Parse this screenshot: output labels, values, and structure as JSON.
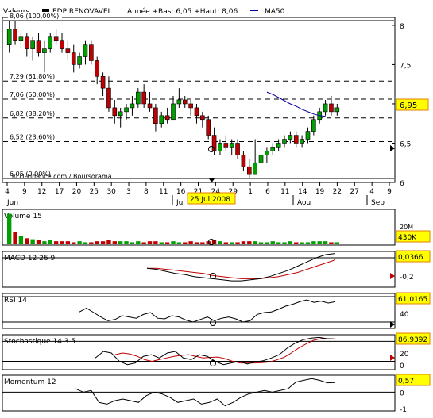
{
  "header": {
    "security": "Valeurs",
    "instrument": "EDP RENOVAVEI",
    "summary": "Année +Bas: 6,05 +Haut: 8,06",
    "ma_legend": "MA50"
  },
  "colors": {
    "up": "#00a000",
    "down": "#c00000",
    "ma": "#0000a0",
    "macd_signal": "#c00000",
    "stoch_d": "#c00000",
    "value_box": "#ffff00",
    "value_box_border": "#e08000",
    "background": "#ffffff",
    "grid": "#000000"
  },
  "main_chart": {
    "y_ticks": [
      "8",
      "7,5",
      "7",
      "6,5",
      "6"
    ],
    "fib_levels": [
      {
        "value": 8.06,
        "label": "8,06 (100,00%)"
      },
      {
        "value": 7.29,
        "label": "7,29 (61,80%)"
      },
      {
        "value": 7.06,
        "label": "7,06 (50,00%)"
      },
      {
        "value": 6.82,
        "label": "6,82 (38,20%)"
      },
      {
        "value": 6.52,
        "label": "6,52 (23,60%)"
      },
      {
        "value": 6.05,
        "label": "6,05 (0,00%)"
      }
    ],
    "last_value": "6,95",
    "copyright": "© IT-Finance.com / Boursorama",
    "x_day_ticks": [
      "4",
      "9",
      "12",
      "17",
      "20",
      "25",
      "30",
      "3",
      "8",
      "11",
      "16",
      "21",
      "24",
      "29",
      "1",
      "6",
      "11",
      "14",
      "19",
      "22",
      "27",
      "4",
      "9"
    ],
    "months": [
      "Jun",
      "Jul",
      "Aou",
      "Sep"
    ],
    "cursor_date": "25 Jul 2008"
  },
  "chart_data": [
    {
      "type": "candlestick",
      "title": "EDP RENOVAVEI",
      "ylim": [
        6.0,
        8.1
      ],
      "candles": [
        {
          "o": 7.75,
          "h": 8.05,
          "l": 7.65,
          "c": 7.95
        },
        {
          "o": 7.95,
          "h": 8.05,
          "l": 7.75,
          "c": 7.8
        },
        {
          "o": 7.8,
          "h": 7.9,
          "l": 7.7,
          "c": 7.85
        },
        {
          "o": 7.85,
          "h": 7.9,
          "l": 7.6,
          "c": 7.7
        },
        {
          "o": 7.7,
          "h": 7.85,
          "l": 7.55,
          "c": 7.8
        },
        {
          "o": 7.8,
          "h": 7.9,
          "l": 7.6,
          "c": 7.65
        },
        {
          "o": 7.65,
          "h": 7.8,
          "l": 7.4,
          "c": 7.7
        },
        {
          "o": 7.7,
          "h": 7.9,
          "l": 7.65,
          "c": 7.85
        },
        {
          "o": 7.85,
          "h": 7.95,
          "l": 7.75,
          "c": 7.8
        },
        {
          "o": 7.8,
          "h": 7.9,
          "l": 7.65,
          "c": 7.7
        },
        {
          "o": 7.7,
          "h": 7.8,
          "l": 7.55,
          "c": 7.65
        },
        {
          "o": 7.65,
          "h": 7.75,
          "l": 7.4,
          "c": 7.5
        },
        {
          "o": 7.5,
          "h": 7.65,
          "l": 7.45,
          "c": 7.6
        },
        {
          "o": 7.6,
          "h": 7.8,
          "l": 7.5,
          "c": 7.75
        },
        {
          "o": 7.75,
          "h": 7.8,
          "l": 7.5,
          "c": 7.55
        },
        {
          "o": 7.55,
          "h": 7.6,
          "l": 7.25,
          "c": 7.35
        },
        {
          "o": 7.35,
          "h": 7.4,
          "l": 7.1,
          "c": 7.2
        },
        {
          "o": 7.2,
          "h": 7.35,
          "l": 6.9,
          "c": 6.95
        },
        {
          "o": 6.95,
          "h": 7.05,
          "l": 6.75,
          "c": 6.85
        },
        {
          "o": 6.85,
          "h": 6.95,
          "l": 6.7,
          "c": 6.9
        },
        {
          "o": 6.9,
          "h": 7.0,
          "l": 6.8,
          "c": 6.95
        },
        {
          "o": 6.95,
          "h": 7.1,
          "l": 6.85,
          "c": 7.0
        },
        {
          "o": 7.0,
          "h": 7.2,
          "l": 6.95,
          "c": 7.15
        },
        {
          "o": 7.15,
          "h": 7.25,
          "l": 6.95,
          "c": 7.0
        },
        {
          "o": 7.0,
          "h": 7.15,
          "l": 6.9,
          "c": 6.95
        },
        {
          "o": 6.95,
          "h": 7.0,
          "l": 6.65,
          "c": 6.75
        },
        {
          "o": 6.75,
          "h": 6.9,
          "l": 6.7,
          "c": 6.85
        },
        {
          "o": 6.85,
          "h": 6.95,
          "l": 6.75,
          "c": 6.8
        },
        {
          "o": 6.8,
          "h": 7.1,
          "l": 6.8,
          "c": 7.0
        },
        {
          "o": 7.0,
          "h": 7.2,
          "l": 6.95,
          "c": 7.05
        },
        {
          "o": 7.05,
          "h": 7.1,
          "l": 6.95,
          "c": 7.0
        },
        {
          "o": 7.0,
          "h": 7.05,
          "l": 6.85,
          "c": 6.95
        },
        {
          "o": 6.95,
          "h": 7.0,
          "l": 6.75,
          "c": 6.85
        },
        {
          "o": 6.85,
          "h": 6.9,
          "l": 6.7,
          "c": 6.8
        },
        {
          "o": 6.8,
          "h": 6.85,
          "l": 6.55,
          "c": 6.6
        },
        {
          "o": 6.6,
          "h": 6.7,
          "l": 6.35,
          "c": 6.4
        },
        {
          "o": 6.4,
          "h": 6.55,
          "l": 6.35,
          "c": 6.5
        },
        {
          "o": 6.5,
          "h": 6.6,
          "l": 6.4,
          "c": 6.45
        },
        {
          "o": 6.45,
          "h": 6.55,
          "l": 6.35,
          "c": 6.5
        },
        {
          "o": 6.5,
          "h": 6.55,
          "l": 6.3,
          "c": 6.35
        },
        {
          "o": 6.35,
          "h": 6.4,
          "l": 6.15,
          "c": 6.2
        },
        {
          "o": 6.2,
          "h": 6.3,
          "l": 6.05,
          "c": 6.1
        },
        {
          "o": 6.1,
          "h": 6.55,
          "l": 6.1,
          "c": 6.25
        },
        {
          "o": 6.25,
          "h": 6.4,
          "l": 6.2,
          "c": 6.35
        },
        {
          "o": 6.35,
          "h": 6.45,
          "l": 6.25,
          "c": 6.4
        },
        {
          "o": 6.4,
          "h": 6.5,
          "l": 6.35,
          "c": 6.45
        },
        {
          "o": 6.45,
          "h": 6.55,
          "l": 6.4,
          "c": 6.5
        },
        {
          "o": 6.5,
          "h": 6.6,
          "l": 6.45,
          "c": 6.55
        },
        {
          "o": 6.55,
          "h": 6.65,
          "l": 6.5,
          "c": 6.6
        },
        {
          "o": 6.6,
          "h": 6.65,
          "l": 6.45,
          "c": 6.5
        },
        {
          "o": 6.5,
          "h": 6.6,
          "l": 6.45,
          "c": 6.55
        },
        {
          "o": 6.55,
          "h": 6.7,
          "l": 6.5,
          "c": 6.65
        },
        {
          "o": 6.65,
          "h": 6.85,
          "l": 6.6,
          "c": 6.8
        },
        {
          "o": 6.8,
          "h": 6.95,
          "l": 6.75,
          "c": 6.9
        },
        {
          "o": 6.9,
          "h": 7.05,
          "l": 6.85,
          "c": 7.0
        },
        {
          "o": 7.0,
          "h": 7.1,
          "l": 6.85,
          "c": 6.9
        },
        {
          "o": 6.9,
          "h": 7.0,
          "l": 6.85,
          "c": 6.95
        }
      ],
      "ma50": [
        7.15,
        7.12,
        7.08,
        7.04,
        7.0,
        6.97,
        6.93,
        6.9,
        6.87,
        6.85,
        6.84
      ]
    },
    {
      "type": "bar",
      "title": "Volume 15",
      "y_ticks": [
        "20M"
      ],
      "last_value": "430K",
      "volumes": [
        3.0,
        1.2,
        0.8,
        0.6,
        0.5,
        0.4,
        0.3,
        0.4,
        0.3,
        0.3,
        0.3,
        0.2,
        0.3,
        0.2,
        0.2,
        0.3,
        0.3,
        0.4,
        0.3,
        0.3,
        0.3,
        0.2,
        0.3,
        0.2,
        0.3,
        0.3,
        0.2,
        0.2,
        0.3,
        0.2,
        0.2,
        0.3,
        0.2,
        0.2,
        0.3,
        0.4,
        0.3,
        0.2,
        0.2,
        0.2,
        0.3,
        0.3,
        0.3,
        0.2,
        0.2,
        0.3,
        0.2,
        0.2,
        0.3,
        0.2,
        0.2,
        0.2,
        0.3,
        0.3,
        0.3,
        0.2,
        0.2
      ]
    },
    {
      "type": "line",
      "title": "MACD 12 26 9",
      "y_ticks": [
        "-0,2"
      ],
      "last_value": "0,0366",
      "ylim": [
        -0.28,
        0.06
      ],
      "macd": [
        -0.1,
        -0.11,
        -0.13,
        -0.15,
        -0.16,
        -0.18,
        -0.19,
        -0.2,
        -0.21,
        -0.22,
        -0.22,
        -0.21,
        -0.2,
        -0.18,
        -0.15,
        -0.12,
        -0.08,
        -0.04,
        0.0,
        0.03,
        0.04
      ],
      "signal": [
        -0.1,
        -0.1,
        -0.11,
        -0.12,
        -0.13,
        -0.14,
        -0.15,
        -0.17,
        -0.18,
        -0.19,
        -0.2,
        -0.2,
        -0.2,
        -0.19,
        -0.18,
        -0.16,
        -0.14,
        -0.11,
        -0.08,
        -0.05,
        -0.02
      ]
    },
    {
      "type": "line",
      "title": "RSI 14",
      "y_ticks": [
        "40"
      ],
      "last_value": "61,0165",
      "ylim": [
        20,
        75
      ],
      "values": [
        46,
        52,
        45,
        38,
        32,
        34,
        40,
        38,
        36,
        42,
        45,
        36,
        35,
        40,
        38,
        33,
        30,
        34,
        38,
        32,
        36,
        38,
        35,
        30,
        32,
        42,
        45,
        46,
        50,
        55,
        58,
        62,
        65,
        61,
        63,
        60,
        62
      ]
    },
    {
      "type": "line",
      "title": "Stochastique 14 3 5",
      "y_ticks": [
        "20",
        "0"
      ],
      "last_value": "86,9392",
      "ylim": [
        -5,
        100
      ],
      "k": [
        30,
        50,
        45,
        20,
        10,
        15,
        35,
        40,
        30,
        45,
        50,
        30,
        25,
        40,
        35,
        20,
        10,
        15,
        20,
        12,
        18,
        22,
        30,
        40,
        60,
        75,
        85,
        90,
        92,
        88,
        87
      ],
      "d": [
        40,
        45,
        42,
        35,
        25,
        20,
        25,
        30,
        35,
        38,
        40,
        35,
        30,
        32,
        33,
        28,
        20,
        15,
        15,
        15,
        16,
        18,
        24,
        32,
        45,
        60,
        72,
        83,
        88,
        88,
        87
      ]
    },
    {
      "type": "line",
      "title": "Momentum 12",
      "y_ticks": [
        "0",
        "-1"
      ],
      "last_value": "0,57",
      "ylim": [
        -1.1,
        1.0
      ],
      "values": [
        0.2,
        0.0,
        0.1,
        -0.6,
        -0.7,
        -0.5,
        -0.4,
        -0.5,
        -0.6,
        -0.2,
        0.0,
        -0.1,
        -0.3,
        -0.6,
        -0.5,
        -0.4,
        -0.7,
        -0.6,
        -0.4,
        -0.8,
        -0.6,
        -0.3,
        -0.1,
        0.0,
        0.1,
        0.0,
        0.1,
        0.2,
        0.6,
        0.7,
        0.8,
        0.7,
        0.55,
        0.57
      ]
    }
  ]
}
